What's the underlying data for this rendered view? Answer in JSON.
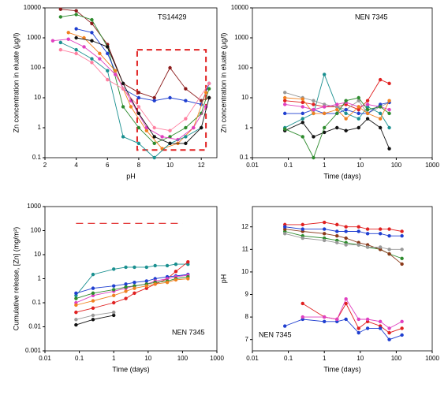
{
  "chart_data": [
    {
      "type": "line",
      "xlabel": "pH",
      "ylabel": "Zn concentration in eluate (µg/l)",
      "annotation": "TS14429",
      "xlim": [
        2,
        13
      ],
      "xticks": [
        2,
        4,
        6,
        8,
        10,
        12
      ],
      "ylog": true,
      "ylim": [
        0.1,
        10000
      ],
      "yticks": [
        0.1,
        1,
        10,
        100,
        1000,
        10000
      ],
      "highlight_box": {
        "x": [
          7.9,
          12.3
        ],
        "y": [
          0.18,
          400
        ],
        "color": "#e02020"
      },
      "series": [
        {
          "color": "#8b1a1a",
          "x": [
            3,
            4,
            5,
            6,
            7,
            8,
            9,
            10,
            11,
            12,
            12.5
          ],
          "values": [
            9000,
            8000,
            3000,
            600,
            30,
            15,
            10,
            100,
            20,
            8,
            10
          ]
        },
        {
          "color": "#2e8b2e",
          "x": [
            3,
            4,
            5,
            6,
            7,
            8,
            9,
            10,
            11,
            12,
            12.5
          ],
          "values": [
            5000,
            6000,
            4000,
            500,
            5,
            1,
            0.3,
            0.5,
            1,
            3,
            20
          ]
        },
        {
          "color": "#1f3fd0",
          "x": [
            4,
            5,
            6,
            7,
            8,
            9,
            10,
            11,
            12,
            12.5
          ],
          "values": [
            2000,
            1500,
            300,
            20,
            10,
            8,
            10,
            8,
            6,
            30
          ]
        },
        {
          "color": "#f08020",
          "x": [
            3.5,
            4.5,
            5.5,
            6.5,
            7.5,
            8.5,
            9.5,
            10.5,
            11.5,
            12.3
          ],
          "values": [
            1500,
            1000,
            300,
            80,
            5,
            0.8,
            0.2,
            0.3,
            1,
            15
          ]
        },
        {
          "color": "#e040c0",
          "x": [
            2.5,
            3.5,
            4.5,
            5.5,
            6.5,
            7.5,
            8.5,
            9.5,
            10.5,
            11.5,
            12.3
          ],
          "values": [
            800,
            900,
            500,
            200,
            60,
            8,
            1,
            0.5,
            0.4,
            1,
            5
          ]
        },
        {
          "color": "#1a9090",
          "x": [
            3,
            4,
            5,
            6,
            7,
            8,
            9,
            10,
            11,
            12
          ],
          "values": [
            700,
            400,
            200,
            80,
            0.5,
            0.3,
            0.1,
            0.3,
            0.5,
            1
          ]
        },
        {
          "color": "#111111",
          "x": [
            4,
            5,
            6,
            7,
            8,
            9,
            10,
            11,
            12,
            12.5
          ],
          "values": [
            1000,
            800,
            500,
            30,
            3,
            0.5,
            0.3,
            0.3,
            1,
            10
          ]
        },
        {
          "color": "#ff7fa0",
          "x": [
            3,
            4,
            5,
            6,
            7,
            8,
            9,
            10,
            11,
            12.5
          ],
          "values": [
            400,
            300,
            150,
            40,
            20,
            5,
            1,
            0.8,
            2,
            30
          ]
        }
      ]
    },
    {
      "type": "line",
      "xlabel": "Time (days)",
      "ylabel": "Zn concentration in eluate (µg/l)",
      "annotation": "NEN 7345",
      "xlog": true,
      "xlim": [
        0.01,
        1000
      ],
      "xticks": [
        0.01,
        0.1,
        1,
        10,
        100,
        1000
      ],
      "ylog": true,
      "ylim": [
        0.1,
        10000
      ],
      "yticks": [
        0.1,
        1,
        10,
        100,
        1000,
        10000
      ],
      "x": [
        0.08,
        0.25,
        0.5,
        1,
        2.25,
        4,
        9,
        16,
        36,
        64
      ],
      "series": [
        {
          "color": "#e02020",
          "values": [
            8,
            7,
            6,
            5,
            5,
            6,
            4,
            8,
            40,
            30
          ]
        },
        {
          "color": "#1a9090",
          "values": [
            1,
            2,
            3,
            60,
            5,
            3,
            2,
            5,
            3,
            1
          ]
        },
        {
          "color": "#111111",
          "values": [
            0.8,
            1.5,
            0.5,
            0.7,
            1,
            0.8,
            1,
            2,
            1,
            0.2
          ]
        },
        {
          "color": "#999999",
          "values": [
            15,
            10,
            8,
            6,
            5,
            4,
            8,
            3,
            5,
            7
          ]
        },
        {
          "color": "#1f3fd0",
          "values": [
            3,
            3,
            4,
            3,
            3,
            4,
            3,
            3,
            6,
            7
          ]
        },
        {
          "color": "#e040c0",
          "values": [
            6,
            5,
            4,
            5,
            6,
            7,
            5,
            6,
            5,
            4
          ]
        },
        {
          "color": "#2e8b2e",
          "values": [
            0.9,
            0.5,
            0.1,
            1,
            3,
            8,
            10,
            4,
            5,
            3
          ]
        },
        {
          "color": "#f08020",
          "values": [
            10,
            9,
            3,
            3,
            4,
            2,
            5,
            3,
            2,
            8
          ]
        }
      ]
    },
    {
      "type": "line",
      "xlabel": "Time (days)",
      "ylabel": "Cumulative release, [Zn] (mg/m²)",
      "annotation": "NEN 7345",
      "xlog": true,
      "xlim": [
        0.01,
        1000
      ],
      "xticks": [
        0.01,
        0.1,
        1,
        10,
        100,
        1000
      ],
      "ylog": true,
      "ylim": [
        0.001,
        1000
      ],
      "yticks": [
        0.001,
        0.01,
        0.1,
        1,
        10,
        100,
        1000
      ],
      "hline": {
        "y": 200,
        "x": [
          0.08,
          100
        ],
        "color": "#e02020"
      },
      "x": [
        0.08,
        0.25,
        1,
        2.25,
        4,
        9,
        16,
        36,
        64,
        144
      ],
      "series": [
        {
          "color": "#1a9090",
          "values": [
            0.2,
            1.5,
            2.5,
            3,
            3,
            3,
            3.5,
            3.5,
            4,
            4
          ]
        },
        {
          "color": "#e02020",
          "values": [
            0.04,
            0.06,
            0.1,
            0.15,
            0.25,
            0.4,
            0.6,
            1,
            2,
            5
          ]
        },
        {
          "color": "#111111",
          "values": [
            0.012,
            0.02,
            0.03,
            null,
            null,
            null,
            null,
            null,
            null,
            null
          ]
        },
        {
          "color": "#1f3fd0",
          "values": [
            0.25,
            0.4,
            0.5,
            0.6,
            0.7,
            0.8,
            1,
            1.2,
            1.3,
            1.5
          ]
        },
        {
          "color": "#e040c0",
          "values": [
            0.1,
            0.2,
            0.3,
            0.4,
            0.5,
            0.6,
            0.8,
            1,
            1.2,
            1.4
          ]
        },
        {
          "color": "#2e8b2e",
          "values": [
            0.15,
            0.25,
            0.35,
            0.45,
            0.5,
            0.6,
            0.7,
            0.8,
            1,
            1.2
          ]
        },
        {
          "color": "#999999",
          "values": [
            0.02,
            0.03,
            0.04,
            null,
            null,
            null,
            null,
            null,
            null,
            null
          ]
        },
        {
          "color": "#f08020",
          "values": [
            0.08,
            0.12,
            0.2,
            0.3,
            0.4,
            0.5,
            0.6,
            0.7,
            0.9,
            1
          ]
        }
      ]
    },
    {
      "type": "line",
      "xlabel": "Time (days)",
      "ylabel": "pH",
      "annotation": "NEN 7345",
      "xlog": true,
      "xlim": [
        0.01,
        1000
      ],
      "xticks": [
        0.01,
        0.1,
        1,
        10,
        100,
        1000
      ],
      "ylim": [
        6.5,
        12.9
      ],
      "yticks": [
        7,
        8,
        9,
        10,
        11,
        12
      ],
      "x": [
        0.08,
        0.25,
        1,
        2.25,
        4,
        9,
        16,
        36,
        64,
        144
      ],
      "series": [
        {
          "color": "#e02020",
          "values": [
            12.1,
            12.1,
            12.2,
            12.1,
            12,
            12,
            11.9,
            11.9,
            11.9,
            11.8
          ]
        },
        {
          "color": "#2e8b2e",
          "values": [
            11.8,
            11.6,
            11.5,
            11.4,
            11.3,
            11.2,
            11.1,
            11,
            10.8,
            10.6
          ]
        },
        {
          "color": "#8b3a1a",
          "values": [
            11.9,
            11.8,
            11.7,
            11.6,
            11.5,
            11.3,
            11.2,
            11,
            10.8,
            10.35
          ]
        },
        {
          "color": "#1f3fd0",
          "values": [
            12,
            11.9,
            11.9,
            11.8,
            11.8,
            11.8,
            11.7,
            11.7,
            11.6,
            11.6
          ]
        },
        {
          "color": "#999999",
          "values": [
            11.7,
            11.5,
            11.4,
            11.3,
            11.2,
            11.2,
            11.1,
            11.1,
            11,
            11
          ]
        },
        {
          "color": "#e02020",
          "values": [
            null,
            8.6,
            8,
            7.9,
            8.6,
            7.5,
            7.8,
            7.6,
            7.3,
            7.5
          ]
        },
        {
          "color": "#1f3fd0",
          "values": [
            7.6,
            7.9,
            7.8,
            7.8,
            7.9,
            7.3,
            7.5,
            7.5,
            7,
            7.2
          ]
        },
        {
          "color": "#e040c0",
          "values": [
            null,
            8,
            8,
            7.9,
            8.8,
            7.9,
            7.9,
            7.8,
            7.5,
            7.8
          ]
        }
      ]
    }
  ]
}
